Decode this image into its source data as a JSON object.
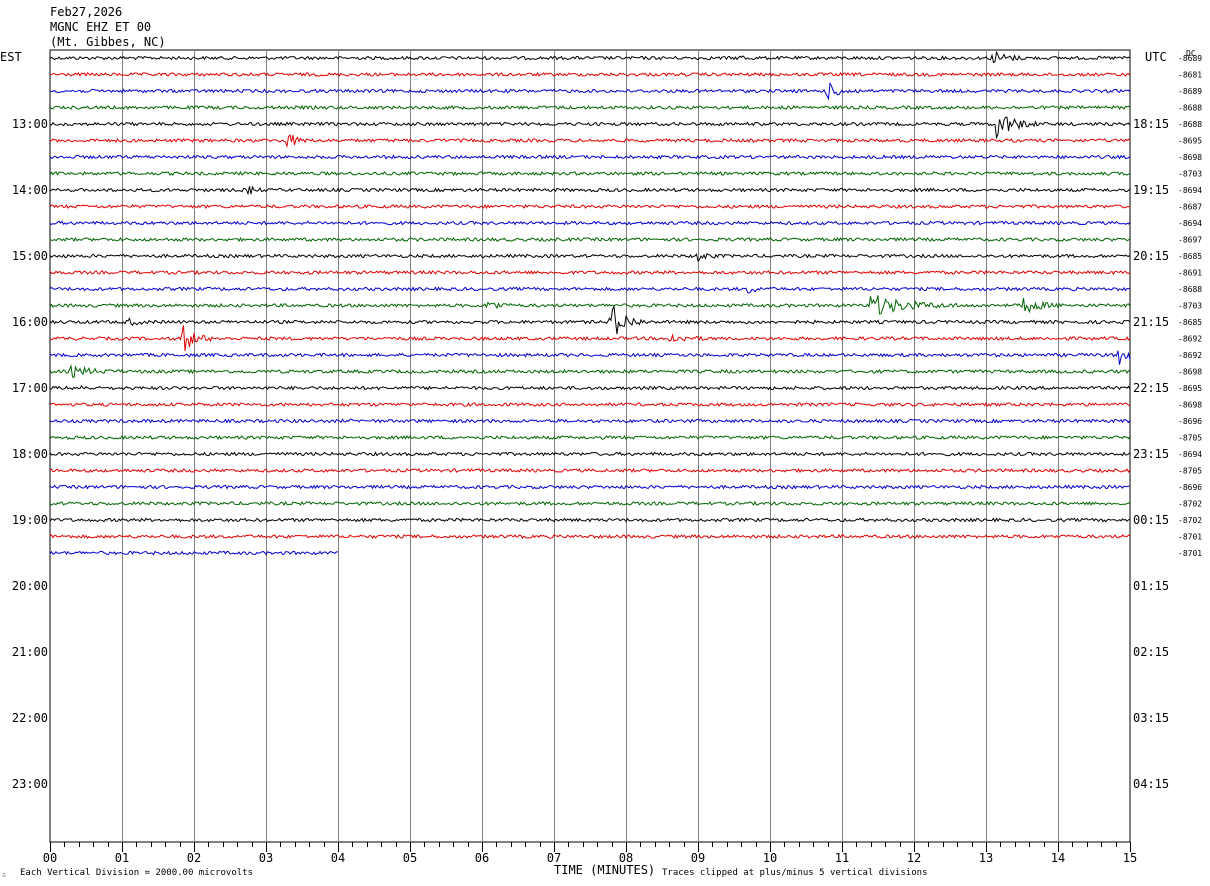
{
  "header": {
    "date": "Feb27,2026",
    "station": "MGNC EHZ ET 00",
    "location": "(Mt. Gibbes, NC)"
  },
  "left_tz": "EST",
  "right_tz": "UTC",
  "dc_label": "DC",
  "footer": {
    "scale_note": "Each Vertical Division = 2000.00 microvolts",
    "clip_note": "Traces clipped at plus/minus 5 vertical divisions",
    "logo_mark": "∴"
  },
  "colors": {
    "trace_cycle": [
      "#000000",
      "#e00000",
      "#0000d0",
      "#006400"
    ],
    "grid": "#808080",
    "frame": "#000000"
  },
  "chart_data": {
    "type": "line",
    "title": "",
    "xlabel": "TIME (MINUTES)",
    "xlim": [
      0,
      15
    ],
    "x_tick_labels": [
      "00",
      "01",
      "02",
      "03",
      "04",
      "05",
      "06",
      "07",
      "08",
      "09",
      "10",
      "11",
      "12",
      "13",
      "14",
      "15"
    ],
    "minor_tick_step_min": 0.2,
    "hours_visible": 12,
    "traces_per_hour": 4,
    "left_hour_labels": [
      "13:00",
      "14:00",
      "15:00",
      "16:00",
      "17:00",
      "18:00",
      "19:00",
      "20:00",
      "21:00",
      "22:00",
      "23:00"
    ],
    "right_hour_labels": [
      "18:15",
      "19:15",
      "20:15",
      "21:15",
      "22:15",
      "23:15",
      "00:15",
      "01:15",
      "02:15",
      "03:15",
      "04:15"
    ],
    "trace_dc_offsets": [
      "-8689",
      "-8681",
      "-8689",
      "-8688",
      "-8688",
      "-8695",
      "-8698",
      "-8703",
      "-8694",
      "-8687",
      "-8694",
      "-8697",
      "-8685",
      "-8691",
      "-8688",
      "-8703",
      "-8685",
      "-8692",
      "-8692",
      "-8698",
      "-8695",
      "-8698",
      "-8696",
      "-8705",
      "-8694",
      "-8705",
      "-8696",
      "-8702",
      "-8702",
      "-8701",
      "-8701"
    ],
    "last_trace_end_min": 4.0,
    "events": [
      {
        "trace": 0,
        "minute": 13.1,
        "amp": 0.45,
        "dur": 0.5
      },
      {
        "trace": 0,
        "minute": 9.6,
        "amp": 0.2,
        "dur": 0.2
      },
      {
        "trace": 2,
        "minute": 10.8,
        "amp": 0.5,
        "dur": 0.5
      },
      {
        "trace": 4,
        "minute": 13.15,
        "amp": 1.0,
        "dur": 0.6
      },
      {
        "trace": 5,
        "minute": 3.3,
        "amp": 0.55,
        "dur": 0.3
      },
      {
        "trace": 8,
        "minute": 2.75,
        "amp": 0.35,
        "dur": 0.2
      },
      {
        "trace": 12,
        "minute": 9.0,
        "amp": 0.35,
        "dur": 0.3
      },
      {
        "trace": 14,
        "minute": 9.7,
        "amp": 0.25,
        "dur": 0.3
      },
      {
        "trace": 15,
        "minute": 6.1,
        "amp": 0.45,
        "dur": 0.3
      },
      {
        "trace": 15,
        "minute": 11.4,
        "amp": 0.75,
        "dur": 1.2
      },
      {
        "trace": 15,
        "minute": 13.5,
        "amp": 0.55,
        "dur": 0.6
      },
      {
        "trace": 16,
        "minute": 1.1,
        "amp": 0.25,
        "dur": 0.3
      },
      {
        "trace": 16,
        "minute": 7.8,
        "amp": 1.25,
        "dur": 0.5
      },
      {
        "trace": 17,
        "minute": 1.85,
        "amp": 1.0,
        "dur": 0.4
      },
      {
        "trace": 17,
        "minute": 8.6,
        "amp": 0.3,
        "dur": 0.5
      },
      {
        "trace": 18,
        "minute": 14.85,
        "amp": 1.0,
        "dur": 0.3
      },
      {
        "trace": 19,
        "minute": 0.3,
        "amp": 0.35,
        "dur": 0.7
      },
      {
        "trace": 20,
        "minute": 0.45,
        "amp": 0.25,
        "dur": 0.1
      }
    ]
  }
}
